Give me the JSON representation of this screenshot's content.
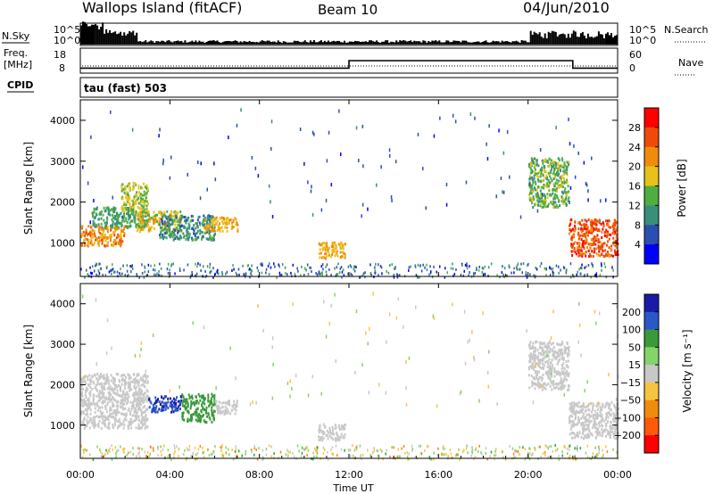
{
  "header": {
    "station": "Wallops Island (fitACF)",
    "beam": "Beam 10",
    "date": "04/Jun/2010"
  },
  "noise_panel": {
    "left_label": "N.Sky",
    "right_label": "N.Search",
    "left_ticks": [
      "10^5",
      "10^0"
    ],
    "right_ticks": [
      "10^5",
      "10^0"
    ]
  },
  "freq_panel": {
    "left_label_line1": "Freq.",
    "left_label_line2": "[MHz]",
    "right_label": "Nave",
    "left_ticks": [
      "18",
      "8"
    ],
    "right_ticks": [
      "60",
      "0"
    ],
    "cpid_label": "CPID",
    "cpid_text": "tau (fast) 503"
  },
  "power_panel": {
    "ylabel": "Slant Range [km]",
    "colorbar_label": "Power [dB]",
    "colorbar_ticks": [
      "28",
      "24",
      "20",
      "16",
      "12",
      "8",
      "4"
    ],
    "colors": [
      "#0000ff",
      "#2b4fb0",
      "#3a8f7a",
      "#4fae3f",
      "#e8c21a",
      "#f08c0c",
      "#f04a0a",
      "#ff0000"
    ]
  },
  "velocity_panel": {
    "ylabel": "Slant Range [km]",
    "colorbar_label": "Velocity [m s⁻¹]",
    "colorbar_ticks": [
      "200",
      "100",
      "50",
      "15",
      "−15",
      "−50",
      "−100",
      "−200"
    ],
    "colors": [
      "#1a1aa8",
      "#2a58c8",
      "#3a9a3a",
      "#86d36a",
      "#c8c8c8",
      "#f4c640",
      "#f08c0c",
      "#ff5a0a",
      "#ff0000"
    ]
  },
  "x_axis": {
    "label": "Time UT",
    "ticks": [
      "00:00",
      "04:00",
      "08:00",
      "12:00",
      "16:00",
      "20:00",
      "00:00"
    ]
  },
  "chart_data": {
    "type": "heatmap",
    "title": "Wallops Island (fitACF)",
    "subtitle": "Beam 10 — 04/Jun/2010",
    "xlabel": "Time UT",
    "ylabel": "Slant Range [km]",
    "xlim_hours": [
      0,
      24
    ],
    "ylim_km": [
      180,
      4500
    ],
    "y_ticks": [
      1000,
      2000,
      3000,
      4000
    ],
    "frequency_mhz": [
      {
        "start_hour": 0,
        "end_hour": 12,
        "value": 10
      },
      {
        "start_hour": 12,
        "end_hour": 22,
        "value": 13
      },
      {
        "start_hour": 22,
        "end_hour": 24,
        "value": 10
      }
    ],
    "power_regions": [
      {
        "t0": 0.0,
        "t1": 2.0,
        "r0": 950,
        "r1": 1450,
        "power_db": 22
      },
      {
        "t0": 0.5,
        "t1": 3.0,
        "r0": 1400,
        "r1": 1900,
        "power_db": 12
      },
      {
        "t0": 1.8,
        "t1": 3.0,
        "r0": 1800,
        "r1": 2500,
        "power_db": 16
      },
      {
        "t0": 2.5,
        "t1": 4.5,
        "r0": 1300,
        "r1": 1800,
        "power_db": 18
      },
      {
        "t0": 3.5,
        "t1": 6.0,
        "r0": 1100,
        "r1": 1700,
        "power_db": 10
      },
      {
        "t0": 5.5,
        "t1": 7.0,
        "r0": 1300,
        "r1": 1650,
        "power_db": 20
      },
      {
        "t0": 10.6,
        "t1": 11.8,
        "r0": 650,
        "r1": 1050,
        "power_db": 20
      },
      {
        "t0": 20.0,
        "t1": 21.8,
        "r0": 1900,
        "r1": 3100,
        "power_db": 14
      },
      {
        "t0": 21.8,
        "t1": 24.0,
        "r0": 700,
        "r1": 1600,
        "power_db": 26
      }
    ],
    "velocity_regions": [
      {
        "t0": 0.0,
        "t1": 3.0,
        "r0": 950,
        "r1": 2300,
        "velocity_ms": 0
      },
      {
        "t0": 3.0,
        "t1": 4.5,
        "r0": 1350,
        "r1": 1750,
        "velocity_ms": 200
      },
      {
        "t0": 4.5,
        "t1": 6.0,
        "r0": 1100,
        "r1": 1800,
        "velocity_ms": 60
      },
      {
        "t0": 6.0,
        "t1": 7.0,
        "r0": 1300,
        "r1": 1650,
        "velocity_ms": 5
      },
      {
        "t0": 10.6,
        "t1": 11.8,
        "r0": 650,
        "r1": 1050,
        "velocity_ms": 0
      },
      {
        "t0": 20.0,
        "t1": 21.8,
        "r0": 1900,
        "r1": 3100,
        "velocity_ms": 0
      },
      {
        "t0": 21.8,
        "t1": 24.0,
        "r0": 700,
        "r1": 1600,
        "velocity_ms": 0
      }
    ]
  }
}
